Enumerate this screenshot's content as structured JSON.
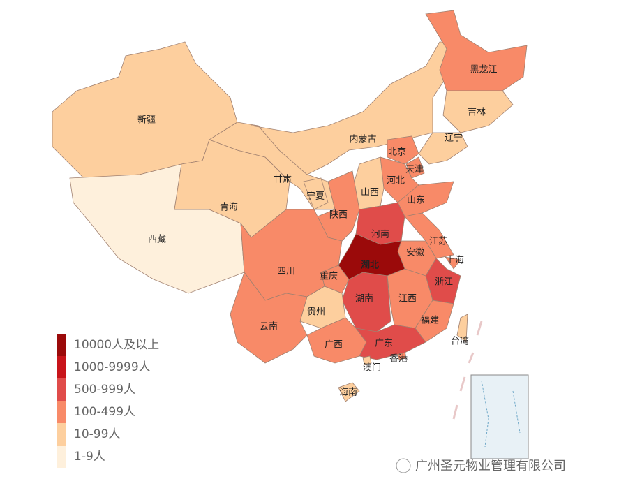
{
  "map": {
    "regions": [
      {
        "label": "新疆",
        "color": "#fdcf9e"
      },
      {
        "label": "西藏",
        "color": "#fef0dc"
      },
      {
        "label": "青海",
        "color": "#fdcf9e"
      },
      {
        "label": "甘肃",
        "color": "#fdcf9e"
      },
      {
        "label": "内蒙古",
        "color": "#fdcf9e"
      },
      {
        "label": "黑龙江",
        "color": "#f88a68"
      },
      {
        "label": "吉林",
        "color": "#fdcf9e"
      },
      {
        "label": "辽宁",
        "color": "#fdcf9e"
      },
      {
        "label": "北京",
        "color": "#f88a68"
      },
      {
        "label": "天津",
        "color": "#f88a68"
      },
      {
        "label": "河北",
        "color": "#f88a68"
      },
      {
        "label": "山西",
        "color": "#fdcf9e"
      },
      {
        "label": "宁夏",
        "color": "#fdcf9e"
      },
      {
        "label": "陕西",
        "color": "#f88a68"
      },
      {
        "label": "山东",
        "color": "#f88a68"
      },
      {
        "label": "河南",
        "color": "#e04c4a"
      },
      {
        "label": "江苏",
        "color": "#f88a68"
      },
      {
        "label": "安徽",
        "color": "#f88a68"
      },
      {
        "label": "上海",
        "color": "#f88a68"
      },
      {
        "label": "浙江",
        "color": "#e04c4a"
      },
      {
        "label": "湖北",
        "color": "#9b0a0a"
      },
      {
        "label": "重庆",
        "color": "#f88a68"
      },
      {
        "label": "四川",
        "color": "#f88a68"
      },
      {
        "label": "湖南",
        "color": "#e04c4a"
      },
      {
        "label": "江西",
        "color": "#f88a68"
      },
      {
        "label": "福建",
        "color": "#f88a68"
      },
      {
        "label": "贵州",
        "color": "#fdcf9e"
      },
      {
        "label": "云南",
        "color": "#f88a68"
      },
      {
        "label": "广西",
        "color": "#f88a68"
      },
      {
        "label": "广东",
        "color": "#e04c4a"
      },
      {
        "label": "香港",
        "color": "#f88a68"
      },
      {
        "label": "澳门",
        "color": "#fdcf9e"
      },
      {
        "label": "海南",
        "color": "#fdcf9e"
      },
      {
        "label": "台湾",
        "color": "#fdcf9e"
      }
    ],
    "legend": [
      {
        "label": "10000人及以上",
        "color": "#9b0a0a"
      },
      {
        "label": "1000-9999人",
        "color": "#c8141a"
      },
      {
        "label": "500-999人",
        "color": "#e04c4a"
      },
      {
        "label": "100-499人",
        "color": "#f88a68"
      },
      {
        "label": "10-99人",
        "color": "#fdcf9e"
      },
      {
        "label": "1-9人",
        "color": "#fef0dc"
      }
    ],
    "watermark": "广州圣元物业管理有限公司"
  }
}
